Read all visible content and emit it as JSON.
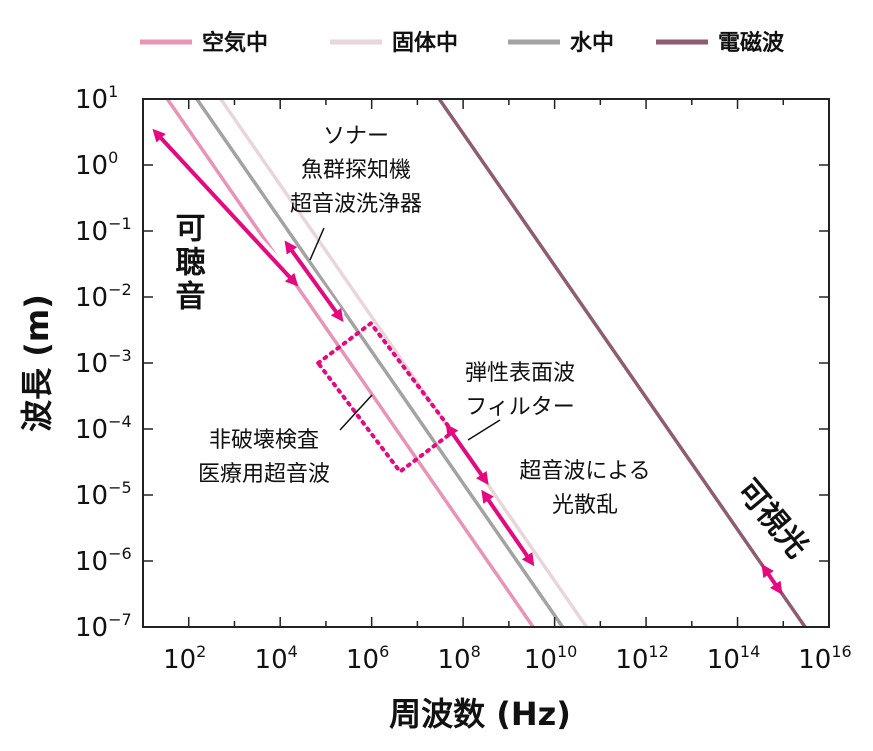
{
  "chart_data": {
    "type": "line",
    "xlabel": "周波数 (Hz)",
    "ylabel": "波長 (m)",
    "xscale": "log",
    "yscale": "log",
    "xlim": [
      10,
      1e+16
    ],
    "ylim": [
      1e-07,
      10
    ],
    "x_ticks": [
      {
        "base": "10",
        "exp": "2",
        "value": 100.0
      },
      {
        "base": "10",
        "exp": "4",
        "value": 10000.0
      },
      {
        "base": "10",
        "exp": "6",
        "value": 1000000.0
      },
      {
        "base": "10",
        "exp": "8",
        "value": 100000000.0
      },
      {
        "base": "10",
        "exp": "10",
        "value": 10000000000.0
      },
      {
        "base": "10",
        "exp": "12",
        "value": 1000000000000.0
      },
      {
        "base": "10",
        "exp": "14",
        "value": 100000000000000.0
      },
      {
        "base": "10",
        "exp": "16",
        "value": 1e+16
      }
    ],
    "y_ticks": [
      {
        "base": "10",
        "exp": "1",
        "value": 10.0
      },
      {
        "base": "10",
        "exp": "0",
        "value": 1.0
      },
      {
        "base": "10",
        "exp": "−1",
        "value": 0.1
      },
      {
        "base": "10",
        "exp": "−2",
        "value": 0.01
      },
      {
        "base": "10",
        "exp": "−3",
        "value": 0.001
      },
      {
        "base": "10",
        "exp": "−4",
        "value": 0.0001
      },
      {
        "base": "10",
        "exp": "−5",
        "value": 1e-05
      },
      {
        "base": "10",
        "exp": "−6",
        "value": 1e-06
      },
      {
        "base": "10",
        "exp": "−7",
        "value": 1e-07
      }
    ],
    "legend_position": "top",
    "series": [
      {
        "name": "空気中",
        "color": "#e993b9",
        "x": [
          34,
          3400000000.0
        ],
        "y": [
          10,
          1e-07
        ]
      },
      {
        "name": "固体中",
        "color": "#e8d6dc",
        "x": [
          500,
          50000000000.0
        ],
        "y": [
          10,
          1e-07
        ]
      },
      {
        "name": "水中",
        "color": "#a3a3a3",
        "x": [
          150,
          15000000000.0
        ],
        "y": [
          10,
          1e-07
        ]
      },
      {
        "name": "電磁波",
        "color": "#8e5c73",
        "x": [
          30000000.0,
          3000000000000000.0
        ],
        "y": [
          10,
          1e-07
        ]
      }
    ],
    "ranges": [
      {
        "id": "audible",
        "color": "#e5097f",
        "x": [
          20,
          20000.0
        ],
        "y": [
          3,
          0.017
        ]
      },
      {
        "id": "sonar",
        "color": "#e5097f",
        "x": [
          15000.0,
          200000.0
        ],
        "y": [
          0.06,
          0.005
        ]
      },
      {
        "id": "saw-filter",
        "color": "#e5097f",
        "x": [
          50000000.0,
          300000000.0
        ],
        "y": [
          0.0001,
          1.7e-05
        ]
      },
      {
        "id": "light-scatter",
        "color": "#e5097f",
        "x": [
          300000000.0,
          3000000000.0
        ],
        "y": [
          1e-05,
          1e-06
        ]
      },
      {
        "id": "visible-light",
        "color": "#e5097f",
        "x": [
          400000000000000.0,
          800000000000000.0
        ],
        "y": [
          7.5e-07,
          3.7e-07
        ]
      }
    ],
    "annotations": [
      {
        "id": "sonar",
        "lines": [
          "ソナー",
          "魚群探知機",
          "超音波洗浄器"
        ]
      },
      {
        "id": "saw",
        "lines": [
          "弾性表面波",
          "フィルター"
        ]
      },
      {
        "id": "ndt",
        "lines": [
          "非破壊検査",
          "医療用超音波"
        ]
      },
      {
        "id": "scatter",
        "lines": [
          "超音波による",
          "光散乱"
        ]
      },
      {
        "id": "audible",
        "text": "可聴音"
      },
      {
        "id": "visible",
        "text": "可視光"
      }
    ]
  }
}
